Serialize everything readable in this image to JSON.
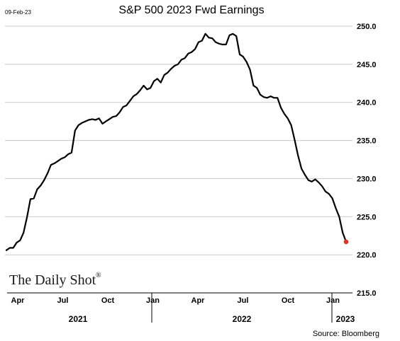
{
  "stamp": "09-Feb-23",
  "source": "Source: Bloomberg",
  "brand": {
    "name": "The Daily Shot",
    "mark": "®"
  },
  "colors": {
    "line": "#000000",
    "last_point": "#e8302a",
    "grid": "#c8c8c8"
  },
  "chart_data": {
    "type": "line",
    "title": "S&P 500 2023 Fwd Earnings",
    "xlabel": "",
    "ylabel": "",
    "ylim": [
      215,
      250
    ],
    "yticks": [
      "250.0",
      "245.0",
      "240.0",
      "235.0",
      "230.0",
      "225.0",
      "220.0",
      "215.0"
    ],
    "grid": true,
    "y_axis_side": "right",
    "x_month_labels": [
      "Apr",
      "Jul",
      "Oct",
      "Jan",
      "Apr",
      "Jul",
      "Oct",
      "Jan"
    ],
    "x_year_labels": [
      "2021",
      "2022",
      "2023"
    ],
    "series": [
      {
        "values": [
          220.6,
          220.9,
          220.9,
          221.6,
          221.9,
          222.9,
          224.9,
          227.3,
          227.4,
          228.6,
          229.1,
          229.8,
          230.7,
          231.8,
          232.0,
          232.3,
          232.6,
          232.8,
          233.2,
          233.4,
          236.3,
          237.0,
          237.3,
          237.5,
          237.7,
          237.8,
          237.7,
          237.9,
          237.2,
          237.5,
          237.8,
          238.1,
          238.2,
          238.7,
          239.4,
          239.6,
          240.2,
          240.8,
          241.1,
          241.6,
          242.2,
          241.7,
          241.9,
          242.8,
          243.1,
          242.6,
          243.6,
          243.9,
          244.4,
          244.8,
          245.0,
          245.6,
          245.8,
          246.4,
          246.6,
          247.0,
          247.9,
          248.1,
          249.0,
          248.5,
          248.4,
          247.9,
          247.7,
          247.6,
          247.6,
          248.8,
          249.0,
          248.7,
          246.3,
          246.0,
          245.3,
          244.3,
          242.2,
          241.9,
          241.0,
          240.7,
          240.6,
          240.8,
          240.6,
          240.6,
          239.3,
          238.5,
          237.9,
          237.0,
          235.1,
          233.0,
          231.3,
          230.5,
          229.8,
          229.6,
          229.9,
          229.5,
          229.0,
          228.3,
          228.0,
          227.4,
          226.1,
          225.0,
          222.9,
          221.7
        ]
      }
    ],
    "last_value": 221.7
  }
}
